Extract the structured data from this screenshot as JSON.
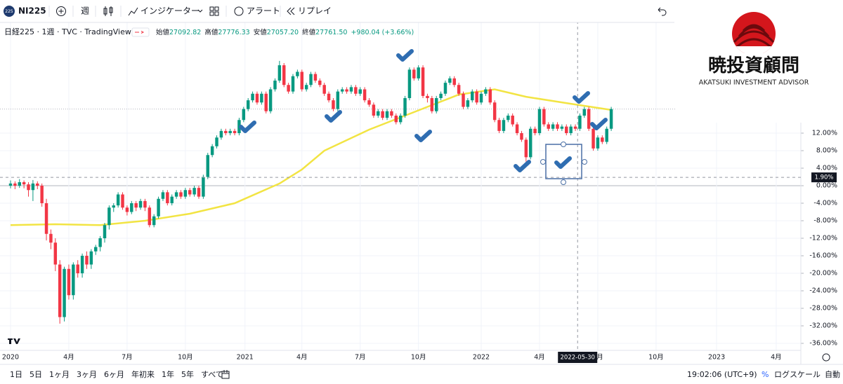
{
  "toolbar": {
    "badge": "225",
    "symbol": "NI225",
    "interval": "週",
    "indicators": "インジケーター",
    "alert": "アラート",
    "replay": "リプレイ"
  },
  "legend": {
    "name": "日経225 · 1週 · TVC · TradingView",
    "fields": [
      {
        "label": "始値",
        "value": "27092.82"
      },
      {
        "label": "高値",
        "value": "27776.33"
      },
      {
        "label": "安値",
        "value": "27057.20"
      },
      {
        "label": "終値",
        "value": "27761.50"
      }
    ],
    "change": "+980.04 (+3.66%)"
  },
  "logo": {
    "kanji": "暁投資顧問",
    "english": "AKATSUKI INVESTMENT ADVISOR"
  },
  "bottom_bar": {
    "ranges": [
      "1日",
      "5日",
      "1ヶ月",
      "3ヶ月",
      "6ヶ月",
      "年初来",
      "1年",
      "5年",
      "すべて"
    ],
    "time": "19:02:06 (UTC+9)",
    "percent": "%",
    "log": "ログスケール",
    "auto": "自動"
  },
  "chart_data": {
    "type": "candlestick",
    "up_color": "#089981",
    "down_color": "#f23645",
    "xlim": [
      -2.35,
      176.3
    ],
    "xticks": [
      {
        "value": 0,
        "label": "2020"
      },
      {
        "value": 13,
        "label": "4月"
      },
      {
        "value": 26,
        "label": "7月"
      },
      {
        "value": 39,
        "label": "10月"
      },
      {
        "value": 52.3,
        "label": "2021"
      },
      {
        "value": 65,
        "label": "4月"
      },
      {
        "value": 78,
        "label": "7月"
      },
      {
        "value": 91,
        "label": "10月"
      },
      {
        "value": 105,
        "label": "2022"
      },
      {
        "value": 118,
        "label": "4月"
      },
      {
        "value": 131,
        "label": "7月"
      },
      {
        "value": 144,
        "label": "10月"
      },
      {
        "value": 157.5,
        "label": "2023"
      },
      {
        "value": 170.8,
        "label": "4月"
      }
    ],
    "ylim": [
      -37.6,
      37.6
    ],
    "yticks": [
      {
        "value": 12,
        "label": "12.00%"
      },
      {
        "value": 8,
        "label": "8.00%"
      },
      {
        "value": 4,
        "label": "4.00%"
      },
      {
        "value": 0,
        "label": "0.00%"
      },
      {
        "value": -4,
        "label": "-4.00%"
      },
      {
        "value": -8,
        "label": "-8.00%"
      },
      {
        "value": -12,
        "label": "-12.00%"
      },
      {
        "value": -16,
        "label": "-16.00%"
      },
      {
        "value": -20,
        "label": "-20.00%"
      },
      {
        "value": -24,
        "label": "-24.00%"
      },
      {
        "value": -28,
        "label": "-28.00%"
      },
      {
        "value": -32,
        "label": "-32.00%"
      },
      {
        "value": -36,
        "label": "-36.00%"
      }
    ],
    "ohlc": [
      [
        0,
        1.2,
        -0.6,
        0.5
      ],
      [
        0.5,
        1.0,
        -0.8,
        0
      ],
      [
        0,
        1.5,
        -0.5,
        0.8
      ],
      [
        0.8,
        1.2,
        -0.6,
        0.3
      ],
      [
        0.3,
        0.8,
        -2.5,
        -1
      ],
      [
        -1,
        1.3,
        -3.5,
        0.5
      ],
      [
        0.5,
        1,
        -0.8,
        0
      ],
      [
        0,
        0.5,
        -4.8,
        -4
      ],
      [
        -4,
        -3,
        -12.5,
        -11
      ],
      [
        -11,
        -10,
        -14.5,
        -13
      ],
      [
        -13,
        -12,
        -19.5,
        -18
      ],
      [
        -18,
        -17,
        -31.5,
        -30
      ],
      [
        -30,
        -18.5,
        -31,
        -19
      ],
      [
        -19,
        -18,
        -26,
        -25
      ],
      [
        -25,
        -17.5,
        -26,
        -18
      ],
      [
        -18,
        -17,
        -21,
        -20
      ],
      [
        -20,
        -15.5,
        -21,
        -16
      ],
      [
        -16,
        -15,
        -19,
        -18
      ],
      [
        -18,
        -14.5,
        -19,
        -15
      ],
      [
        -15,
        -13.5,
        -15.8,
        -14
      ],
      [
        -14,
        -11.5,
        -15,
        -12
      ],
      [
        -12,
        -8.5,
        -13,
        -9
      ],
      [
        -9,
        -4.5,
        -10,
        -5
      ],
      [
        -5,
        -4,
        -6,
        -4.5
      ],
      [
        -4.5,
        -1.5,
        -5,
        -2
      ],
      [
        -2,
        -1.5,
        -5.5,
        -5
      ],
      [
        -5,
        -4.5,
        -6.8,
        -6
      ],
      [
        -6,
        -3.5,
        -6.5,
        -4
      ],
      [
        -4,
        -3.5,
        -5.8,
        -5
      ],
      [
        -5,
        -3,
        -5.5,
        -3.5
      ],
      [
        -3.5,
        -3,
        -5.8,
        -5
      ],
      [
        -5,
        -4.5,
        -9.5,
        -9
      ],
      [
        -9,
        -6.5,
        -9.5,
        -7
      ],
      [
        -7,
        -2.5,
        -7.5,
        -3
      ],
      [
        -3,
        -1,
        -3.5,
        -1.5
      ],
      [
        -1.5,
        -1,
        -4.5,
        -4
      ],
      [
        -4,
        -2,
        -4.5,
        -2.5
      ],
      [
        -2.5,
        -1,
        -3,
        -1.5
      ],
      [
        -1.5,
        -1,
        -3,
        -2.5
      ],
      [
        -2.5,
        -0.5,
        -3,
        -1
      ],
      [
        -1,
        -0.5,
        -2.5,
        -2
      ],
      [
        -2,
        0,
        -2.5,
        -0.5
      ],
      [
        -0.5,
        0,
        -3,
        -2.5
      ],
      [
        -2.5,
        2.5,
        -3,
        2
      ],
      [
        2,
        7.5,
        1.5,
        7
      ],
      [
        7,
        9.5,
        6.5,
        9
      ],
      [
        9,
        11.5,
        8.5,
        11
      ],
      [
        11,
        13,
        10.5,
        12.5
      ],
      [
        12.5,
        13,
        11.5,
        12
      ],
      [
        12,
        13,
        11.5,
        12.5
      ],
      [
        12.5,
        13,
        11.5,
        12
      ],
      [
        12,
        15.5,
        11.5,
        15
      ],
      [
        15,
        18,
        14.5,
        17.5
      ],
      [
        17.5,
        20,
        17,
        19.5
      ],
      [
        19.5,
        21.5,
        19,
        21
      ],
      [
        21,
        21.5,
        18.5,
        19
      ],
      [
        19,
        21.5,
        18.5,
        21
      ],
      [
        21,
        21.5,
        16.5,
        17
      ],
      [
        17,
        22.5,
        16.5,
        22
      ],
      [
        22,
        24.5,
        21.5,
        24
      ],
      [
        24,
        28.5,
        23.5,
        27.5
      ],
      [
        27.5,
        28,
        22.5,
        23
      ],
      [
        23,
        23.5,
        21,
        21.5
      ],
      [
        21.5,
        25.5,
        21,
        25
      ],
      [
        25,
        26.5,
        24.5,
        26
      ],
      [
        26,
        26.5,
        21.5,
        22
      ],
      [
        22,
        23.5,
        21.5,
        23
      ],
      [
        23,
        26,
        22.5,
        25.5
      ],
      [
        25.5,
        26,
        23.5,
        24
      ],
      [
        24,
        24.5,
        22.5,
        23
      ],
      [
        23,
        23.5,
        20.5,
        21
      ],
      [
        21,
        21.5,
        19,
        19.5
      ],
      [
        19.5,
        20,
        17,
        17.5
      ],
      [
        17.5,
        22,
        17,
        21.5
      ],
      [
        21.5,
        22.5,
        21,
        22
      ],
      [
        22,
        22.5,
        21,
        21.5
      ],
      [
        21.5,
        23,
        21,
        22.5
      ],
      [
        22.5,
        23,
        20.5,
        21
      ],
      [
        21,
        22.5,
        20.5,
        22
      ],
      [
        22,
        22.5,
        19,
        19.5
      ],
      [
        19.5,
        20,
        18,
        18.5
      ],
      [
        18.5,
        19,
        15.5,
        16
      ],
      [
        16,
        17.5,
        15.5,
        17
      ],
      [
        17,
        17.5,
        15,
        15.5
      ],
      [
        15.5,
        17.5,
        15,
        17
      ],
      [
        17,
        17.5,
        15.5,
        16
      ],
      [
        16,
        16.5,
        14,
        14.5
      ],
      [
        14.5,
        16.5,
        14,
        16
      ],
      [
        16,
        20.5,
        15.5,
        20
      ],
      [
        20,
        27,
        19.5,
        26.5
      ],
      [
        26.5,
        27,
        24,
        24.5
      ],
      [
        24.5,
        27.5,
        24,
        27
      ],
      [
        27,
        27.5,
        20,
        20.5
      ],
      [
        20.5,
        21,
        19,
        20
      ],
      [
        20,
        20.5,
        16.5,
        17
      ],
      [
        17,
        20.5,
        16.5,
        20
      ],
      [
        20,
        21.5,
        19.5,
        21
      ],
      [
        21,
        24,
        20.5,
        23.5
      ],
      [
        23.5,
        25,
        23,
        24.5
      ],
      [
        24.5,
        25,
        22.5,
        23
      ],
      [
        23,
        23.5,
        20.5,
        21
      ],
      [
        21,
        21.5,
        17.5,
        18
      ],
      [
        18,
        20,
        17.5,
        19.5
      ],
      [
        19.5,
        22,
        19,
        21.5
      ],
      [
        21.5,
        22,
        18.5,
        19
      ],
      [
        19,
        21.5,
        18.5,
        21
      ],
      [
        21,
        22.5,
        20.5,
        22
      ],
      [
        22,
        22.5,
        18.5,
        19
      ],
      [
        19,
        19.5,
        14.5,
        15
      ],
      [
        15,
        15.5,
        12,
        12.5
      ],
      [
        12.5,
        15.5,
        12,
        15
      ],
      [
        15,
        16.5,
        14.5,
        16
      ],
      [
        16,
        16.5,
        13.5,
        14
      ],
      [
        14,
        14.5,
        11.5,
        12
      ],
      [
        12,
        12.5,
        10,
        10.5
      ],
      [
        10.5,
        11,
        5.5,
        6.5
      ],
      [
        6.5,
        13.5,
        6,
        13
      ],
      [
        13,
        13.5,
        11.5,
        12
      ],
      [
        12,
        18,
        11.5,
        17.5
      ],
      [
        17.5,
        18,
        13.5,
        14
      ],
      [
        14,
        14.5,
        12.5,
        13
      ],
      [
        13,
        14.5,
        12.5,
        14
      ],
      [
        14,
        14.5,
        12.5,
        13
      ],
      [
        13,
        14,
        12.5,
        13.5
      ],
      [
        13.5,
        14,
        11.5,
        12
      ],
      [
        12,
        14,
        11.5,
        13.5
      ],
      [
        13.5,
        14,
        12.5,
        13
      ],
      [
        13,
        16.5,
        12.5,
        16
      ],
      [
        16,
        18,
        15.5,
        17.5
      ],
      [
        17.5,
        18,
        12.5,
        13
      ],
      [
        13,
        13.5,
        8,
        8.5
      ],
      [
        8.5,
        11.5,
        8,
        11
      ],
      [
        11,
        11.5,
        9.5,
        10
      ],
      [
        10,
        13.5,
        9.5,
        13
      ],
      [
        13,
        18,
        12.5,
        17.5
      ]
    ],
    "ma": {
      "color": "#f2e443",
      "x": [
        0,
        10,
        20,
        30,
        40,
        50,
        60,
        65,
        70,
        80,
        90,
        100,
        108,
        115,
        125,
        134
      ],
      "values": [
        -9,
        -8.8,
        -9,
        -8,
        -6.4,
        -4,
        0.5,
        3.7,
        8,
        12.8,
        16.8,
        20.8,
        22,
        20.3,
        18.7,
        17.3
      ]
    },
    "crosshair": {
      "x": 126.5,
      "x_label": "2022-05-30",
      "y": 1.9,
      "y_label": "1.90%"
    }
  }
}
